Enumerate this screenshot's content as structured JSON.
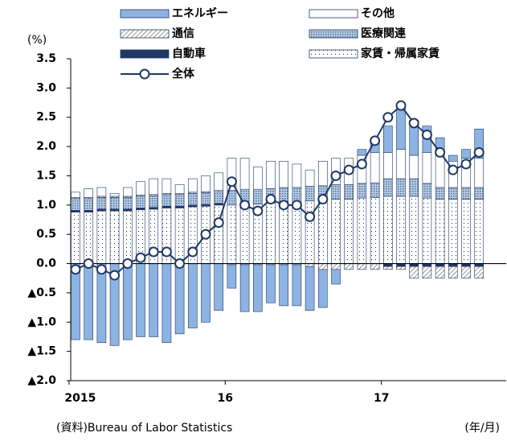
{
  "chart_data": {
    "type": "bar",
    "unit_label": "(%)",
    "source": "(資料)Bureau of Labor Statistics",
    "x_unit": "(年/月)",
    "categories": [
      "2015",
      null,
      null,
      null,
      null,
      null,
      null,
      null,
      null,
      null,
      null,
      null,
      "16",
      null,
      null,
      null,
      null,
      null,
      null,
      null,
      null,
      null,
      null,
      null,
      "17",
      null,
      null,
      null,
      null,
      null,
      null,
      null
    ],
    "series": [
      {
        "name": "エネルギー",
        "color": "#8db3e2",
        "values": [
          -1.3,
          -1.3,
          -1.35,
          -1.4,
          -1.3,
          -1.25,
          -1.25,
          -1.35,
          -1.2,
          -1.1,
          -1.0,
          -0.8,
          -0.4,
          -0.8,
          -0.8,
          -0.65,
          -0.7,
          -0.7,
          -0.75,
          -0.65,
          -0.25,
          0.0,
          0.1,
          0.15,
          0.45,
          0.75,
          0.6,
          0.45,
          0.3,
          0.1,
          0.15,
          0.5
        ]
      },
      {
        "name": "その他",
        "color": "#ffffff",
        "values": [
          0.09,
          0.15,
          0.15,
          0.05,
          0.15,
          0.23,
          0.27,
          0.25,
          0.15,
          0.23,
          0.27,
          0.3,
          0.55,
          0.53,
          0.38,
          0.47,
          0.45,
          0.4,
          0.28,
          0.42,
          0.45,
          0.45,
          0.48,
          0.52,
          0.45,
          0.5,
          0.4,
          0.53,
          0.55,
          0.45,
          0.5,
          0.5
        ]
      },
      {
        "name": "通信",
        "color": "#ffffff",
        "values": [
          0.02,
          0.02,
          0.02,
          0.02,
          0.02,
          0.02,
          0.02,
          0.02,
          0.02,
          0.02,
          0.02,
          0.02,
          -0.02,
          -0.02,
          -0.02,
          -0.02,
          -0.02,
          -0.02,
          -0.05,
          -0.1,
          -0.1,
          -0.1,
          -0.1,
          -0.1,
          -0.05,
          -0.05,
          -0.2,
          -0.2,
          -0.2,
          -0.2,
          -0.2,
          -0.2
        ]
      },
      {
        "name": "医療関連",
        "color": "#b8cce4",
        "values": [
          0.2,
          0.2,
          0.2,
          0.2,
          0.2,
          0.2,
          0.2,
          0.2,
          0.2,
          0.2,
          0.2,
          0.2,
          0.25,
          0.25,
          0.25,
          0.25,
          0.25,
          0.25,
          0.25,
          0.25,
          0.25,
          0.25,
          0.25,
          0.25,
          0.3,
          0.3,
          0.3,
          0.25,
          0.2,
          0.2,
          0.2,
          0.2
        ]
      },
      {
        "name": "自動車",
        "color": "#1f3864",
        "values": [
          0.03,
          0.03,
          0.03,
          0.03,
          0.03,
          0.03,
          0.03,
          0.03,
          0.03,
          0.03,
          0.03,
          0.03,
          0.0,
          0.0,
          0.0,
          0.0,
          0.0,
          0.0,
          0.0,
          0.0,
          0.0,
          0.0,
          0.0,
          0.0,
          -0.05,
          -0.05,
          -0.05,
          -0.05,
          -0.05,
          -0.05,
          -0.05,
          -0.05
        ]
      },
      {
        "name": "家賃・帰属家賃",
        "color": "#ffffff",
        "values": [
          0.88,
          0.88,
          0.9,
          0.9,
          0.9,
          0.92,
          0.93,
          0.95,
          0.95,
          0.97,
          0.98,
          1.0,
          1.0,
          1.02,
          1.02,
          1.03,
          1.05,
          1.05,
          1.07,
          1.08,
          1.1,
          1.1,
          1.12,
          1.13,
          1.15,
          1.15,
          1.15,
          1.12,
          1.1,
          1.1,
          1.1,
          1.1
        ]
      },
      {
        "name": "全体",
        "color": "#1f3864",
        "type": "line",
        "values": [
          -0.1,
          0.0,
          -0.1,
          -0.2,
          0.0,
          0.1,
          0.2,
          0.2,
          0.0,
          0.2,
          0.5,
          0.7,
          1.4,
          1.0,
          0.9,
          1.1,
          1.0,
          1.0,
          0.8,
          1.1,
          1.5,
          1.6,
          1.7,
          2.1,
          2.5,
          2.7,
          2.4,
          2.2,
          1.9,
          1.6,
          1.7,
          1.9
        ]
      }
    ],
    "ylim": [
      -2.0,
      3.5
    ],
    "yticks": [
      {
        "value": -2.0,
        "label": "▲2.0"
      },
      {
        "value": -1.5,
        "label": "▲1.5"
      },
      {
        "value": -1.0,
        "label": "▲1.0"
      },
      {
        "value": -0.5,
        "label": "▲0.5"
      },
      {
        "value": 0.0,
        "label": "0.0"
      },
      0.5,
      {
        "value": 1.0,
        "label": "1.0"
      },
      1.5,
      {
        "value": 2.0,
        "label": "2.0"
      },
      2.5,
      {
        "value": 3.0,
        "label": "3.0"
      },
      3.5
    ]
  }
}
